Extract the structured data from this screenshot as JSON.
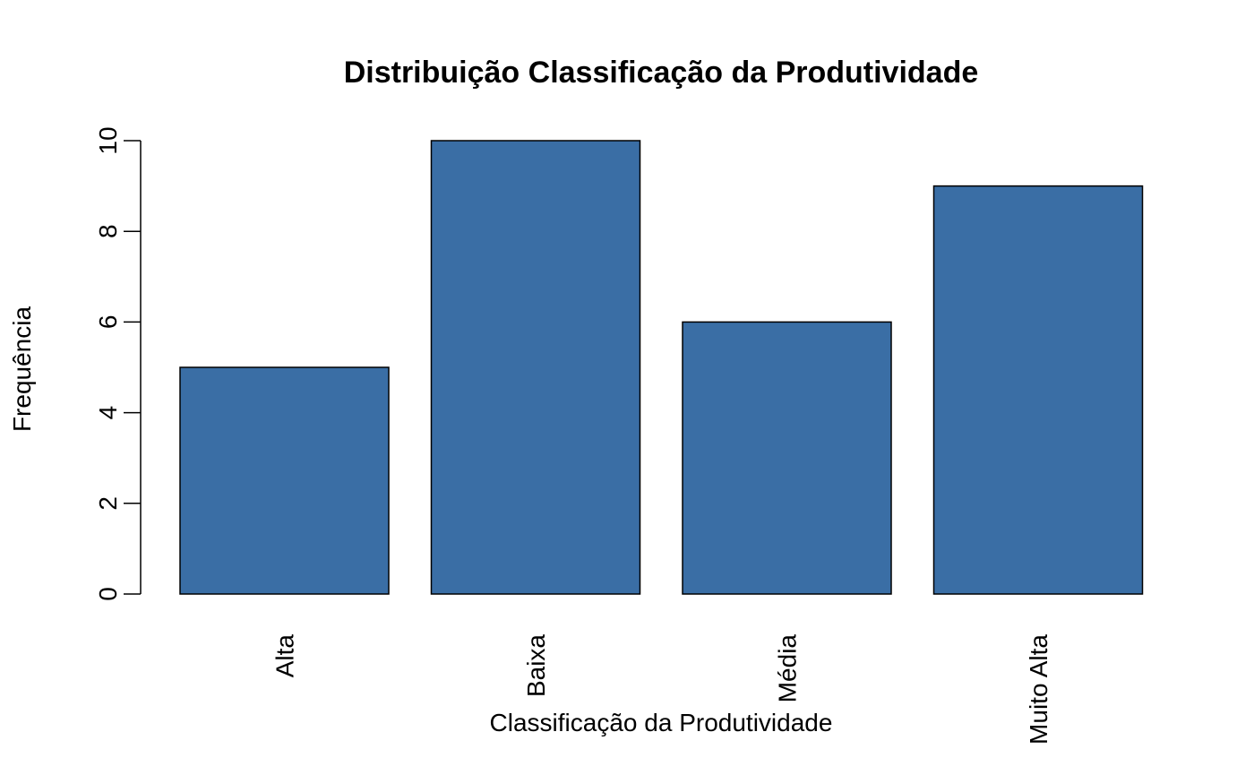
{
  "chart_data": {
    "type": "bar",
    "title": "Distribuição Classificação da Produtividade",
    "xlabel": "Classificação da Produtividade",
    "ylabel": "Frequência",
    "categories": [
      "Alta",
      "Baixa",
      "Média",
      "Muito Alta"
    ],
    "values": [
      5,
      10,
      6,
      9
    ],
    "ylim": [
      0,
      10
    ],
    "yticks": [
      0,
      2,
      4,
      6,
      8,
      10
    ],
    "x_tick_label_orientation": "vertical",
    "grid": false,
    "legend": "none",
    "bar_color": "#3A6EA5",
    "bar_border_color": "#000000"
  }
}
